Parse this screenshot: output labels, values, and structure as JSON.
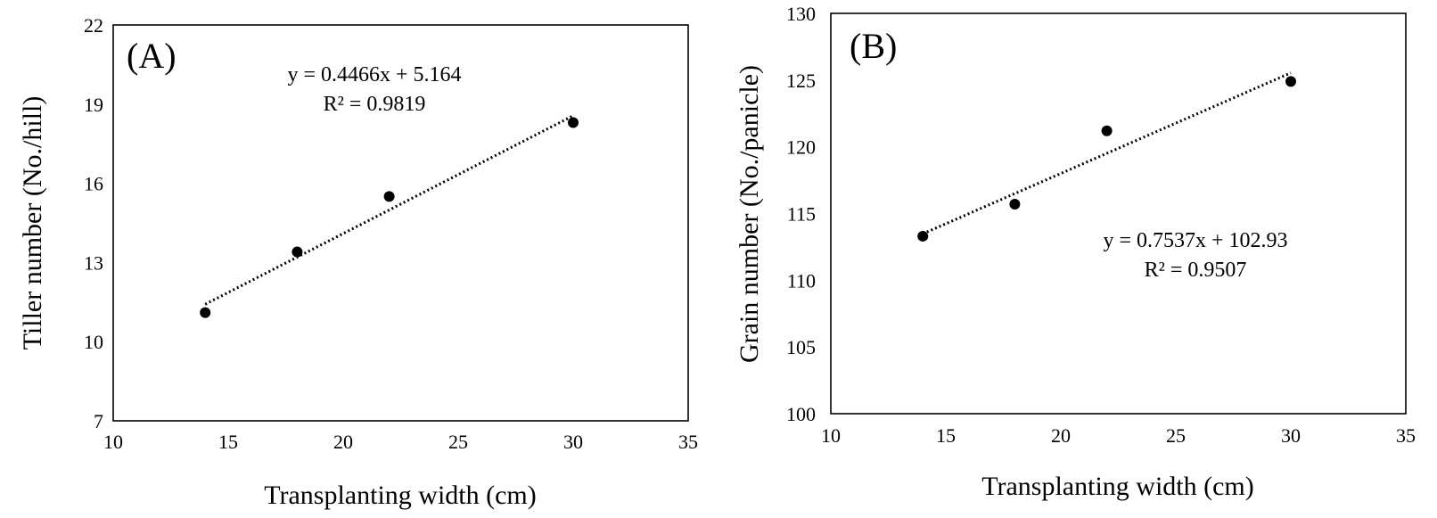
{
  "chart_data": [
    {
      "type": "scatter",
      "panel_label": "(A)",
      "xlabel": "Transplanting width (cm)",
      "ylabel": "Tiller number (No./hill)",
      "xlim": [
        10,
        35
      ],
      "ylim": [
        7,
        22
      ],
      "xticks": [
        10,
        15,
        20,
        25,
        30,
        35
      ],
      "yticks": [
        7,
        10,
        13,
        16,
        19,
        22
      ],
      "grid": false,
      "series": [
        {
          "x": [
            14,
            18,
            22,
            30
          ],
          "y": [
            11.1,
            13.4,
            15.5,
            18.3
          ]
        }
      ],
      "trendline": {
        "type": "linear",
        "slope": 0.4466,
        "intercept": 5.164,
        "x_range": [
          14,
          30
        ]
      },
      "annotations": [
        "y = 0.4466x + 5.164",
        "R² = 0.9819"
      ]
    },
    {
      "type": "scatter",
      "panel_label": "(B)",
      "xlabel": "Transplanting width (cm)",
      "ylabel": "Grain number (No./panicle)",
      "xlim": [
        10,
        35
      ],
      "ylim": [
        100,
        130
      ],
      "xticks": [
        10,
        15,
        20,
        25,
        30,
        35
      ],
      "yticks": [
        100,
        105,
        110,
        115,
        120,
        125,
        130
      ],
      "grid": false,
      "series": [
        {
          "x": [
            14,
            18,
            22,
            30
          ],
          "y": [
            113.3,
            115.7,
            121.2,
            124.9
          ]
        }
      ],
      "trendline": {
        "type": "linear",
        "slope": 0.7537,
        "intercept": 102.93,
        "x_range": [
          14,
          30
        ]
      },
      "annotations": [
        "y = 0.7537x + 102.93",
        "R² = 0.9507"
      ]
    }
  ]
}
